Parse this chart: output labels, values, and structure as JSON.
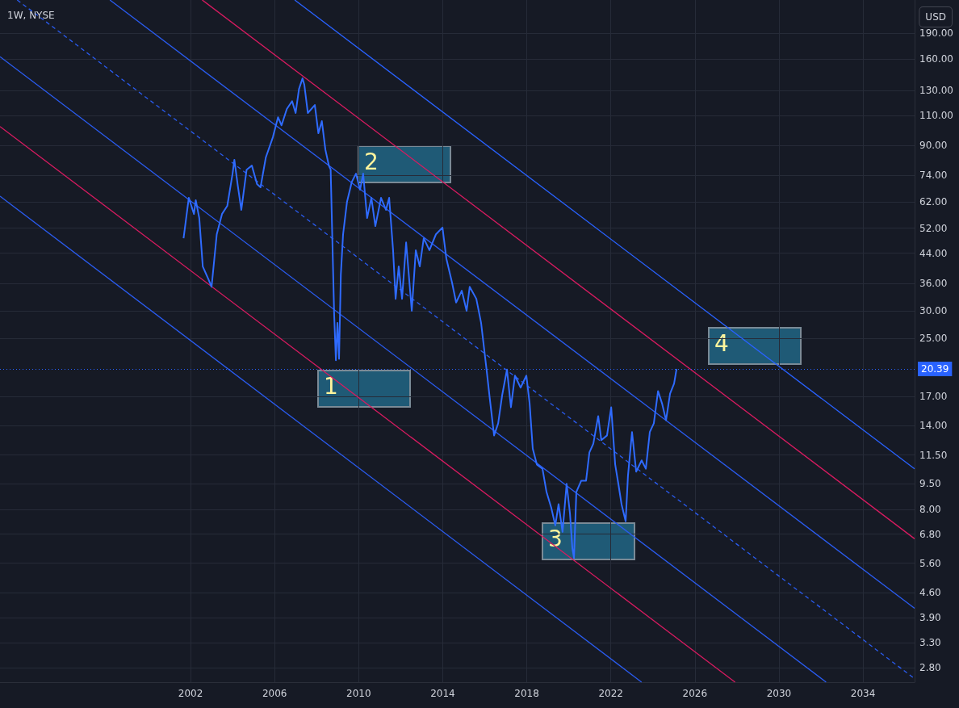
{
  "chart_data": {
    "type": "line",
    "title": "1W, NYSE",
    "log": true,
    "grid": true,
    "marker": "none",
    "tick_labels": "xy",
    "xlim": [
      "1992-12-06",
      "2036-06-17"
    ],
    "xticks": [
      "2002",
      "2006",
      "2010",
      "2014",
      "2018",
      "2022",
      "2026",
      "2030",
      "2034"
    ],
    "ylim": [
      2.54,
      237
    ],
    "yticks": [
      {
        "value": 2.8,
        "label": "2.80"
      },
      {
        "value": 3.3,
        "label": "3.30"
      },
      {
        "value": 3.9,
        "label": "3.90"
      },
      {
        "value": 4.6,
        "label": "4.60"
      },
      {
        "value": 5.6,
        "label": "5.60"
      },
      {
        "value": 6.8,
        "label": "6.80"
      },
      {
        "value": 8,
        "label": "8.00"
      },
      {
        "value": 9.5,
        "label": "9.50"
      },
      {
        "value": 11.5,
        "label": "11.50"
      },
      {
        "value": 14,
        "label": "14.00"
      },
      {
        "value": 17,
        "label": "17.00"
      },
      {
        "value": 25,
        "label": "25.00"
      },
      {
        "value": 30,
        "label": "30.00"
      },
      {
        "value": 36,
        "label": "36.00"
      },
      {
        "value": 44,
        "label": "44.00"
      },
      {
        "value": 52,
        "label": "52.00"
      },
      {
        "value": 62,
        "label": "62.00"
      },
      {
        "value": 74,
        "label": "74.00"
      },
      {
        "value": 90,
        "label": "90.00"
      },
      {
        "value": 110,
        "label": "110.00"
      },
      {
        "value": 130,
        "label": "130.00"
      },
      {
        "value": 160,
        "label": "160.00"
      },
      {
        "value": 190,
        "label": "190.00"
      }
    ],
    "series": [
      {
        "color": "#2f6bff",
        "line_style": "solid",
        "x": [
          "2001-09",
          "2001-12",
          "2002-03",
          "2002-04",
          "2002-06",
          "2002-08",
          "2002-11",
          "2003-01",
          "2003-04",
          "2003-07",
          "2003-10",
          "2004-01",
          "2004-02",
          "2004-04",
          "2004-06",
          "2004-09",
          "2004-12",
          "2005-03",
          "2005-05",
          "2005-08",
          "2005-12",
          "2006-03",
          "2006-05",
          "2006-08",
          "2006-11",
          "2007-01",
          "2007-03",
          "2007-05",
          "2007-06",
          "2007-08",
          "2007-12",
          "2008-02",
          "2008-04",
          "2008-06",
          "2008-08",
          "2008-09",
          "2008-11-01",
          "2008-12-01",
          "2008-12-28",
          "2009-01-25",
          "2009-02-25",
          "2009-04-05",
          "2009-06-12",
          "2009-09-05",
          "2009-11-15",
          "2010-01-25",
          "2010-03-20",
          "2010-05-28",
          "2010-08-10",
          "2010-10-18",
          "2011-01-25",
          "2011-04-20",
          "2011-06-15",
          "2011-08-22",
          "2011-10-05",
          "2011-11-28",
          "2012-01-25",
          "2012-04-05",
          "2012-07-12",
          "2012-09-20",
          "2012-11-28",
          "2013-02-05",
          "2013-05-15",
          "2013-09-05",
          "2013-12-28",
          "2014-03-05",
          "2014-06-12",
          "2014-08-22",
          "2014-11-28",
          "2015-02-20",
          "2015-04-15",
          "2015-08-08",
          "2015-10-30",
          "2016-02-05",
          "2016-04-01",
          "2016-06-12",
          "2016-08-22",
          "2016-10-30",
          "2017-01-22",
          "2017-04-01",
          "2017-06-10",
          "2017-09-15",
          "2017-12-25",
          "2018-02-20",
          "2018-04-15",
          "2018-06-25",
          "2018-10-01",
          "2018-12-10",
          "2019-03-03",
          "2019-05-12",
          "2019-07-08",
          "2019-09-15",
          "2019-11-25",
          "2020-01-22",
          "2020-03-03",
          "2020-04-01",
          "2020-05-12",
          "2020-08-05",
          "2020-10-28",
          "2020-12-25",
          "2021-03-03",
          "2021-05-27",
          "2021-07-20",
          "2021-10-27",
          "2022-01-08",
          "2022-03-18",
          "2022-05-12",
          "2022-07-06",
          "2022-09-16",
          "2022-10-26",
          "2023-01-05",
          "2023-03-18",
          "2023-06-21",
          "2023-09-02",
          "2023-11-10",
          "2024-01-19",
          "2024-04-01",
          "2024-06-10",
          "2024-08-18",
          "2024-10-27",
          "2025-01-05",
          "2025-02-17"
        ],
        "values": [
          48.6,
          63.6,
          57.1,
          62.6,
          55.6,
          40.3,
          37.2,
          35.2,
          49.9,
          57.1,
          60.3,
          74.7,
          81.9,
          68.9,
          58.7,
          76.7,
          78.8,
          69.7,
          68.2,
          83.2,
          95.1,
          108.7,
          103,
          114.8,
          121,
          111.8,
          131.2,
          140.7,
          134.9,
          111.8,
          117.9,
          97.7,
          105.9,
          87.7,
          78.8,
          76.7,
          29.2,
          21.6,
          27.7,
          21.8,
          38.2,
          49.9,
          61.9,
          70.8,
          74.7,
          67.1,
          74.7,
          55.6,
          63.6,
          52.7,
          63.6,
          58.7,
          63.6,
          44.9,
          32.5,
          40.3,
          32.5,
          47.3,
          30.0,
          44.9,
          40.3,
          48.6,
          44.9,
          49.9,
          52.2,
          42.5,
          36.2,
          31.7,
          34.3,
          30.0,
          35.2,
          32.5,
          27.7,
          20.1,
          16.6,
          13.1,
          14.2,
          17.1,
          20.3,
          15.8,
          19.5,
          18.0,
          19.5,
          16.2,
          12.0,
          10.8,
          10.5,
          9.0,
          8.1,
          7.2,
          8.3,
          6.9,
          9.5,
          7.8,
          6.2,
          5.8,
          9.0,
          9.7,
          9.7,
          11.7,
          12.4,
          14.9,
          12.7,
          13.1,
          15.8,
          10.8,
          9.5,
          8.3,
          7.4,
          10.0,
          13.4,
          10.3,
          11.1,
          10.5,
          13.4,
          14.2,
          17.6,
          16.2,
          14.5,
          17.3,
          18.5,
          20.39
        ]
      },
      {
        "color": "#2962ff",
        "line_style": "solid",
        "x": [
          "2006-12-16",
          "2036-06-17"
        ],
        "values": [
          237,
          10.49
        ]
      },
      {
        "color": "#d81b60",
        "line_style": "solid",
        "x": [
          "2002-07-22",
          "2036-06-17"
        ],
        "values": [
          237,
          6.59
        ]
      },
      {
        "color": "#2a5cf0",
        "line_style": "solid",
        "x": [
          "1998-03",
          "2036-06-17"
        ],
        "values": [
          237,
          4.15
        ]
      },
      {
        "color": "#2a5cf0",
        "line_style": "dashed",
        "x": [
          "1993-10",
          "2036-06-17"
        ],
        "values": [
          237,
          2.6
        ]
      },
      {
        "color": "#2a5cf0",
        "line_style": "solid",
        "x": [
          "1992-12-06",
          "2032-04"
        ],
        "values": [
          162.6,
          2.54
        ]
      },
      {
        "color": "#d81b60",
        "line_style": "solid",
        "x": [
          "1992-12-06",
          "2027-12"
        ],
        "values": [
          102.2,
          2.54
        ]
      },
      {
        "color": "#2a5cf0",
        "line_style": "solid",
        "x": [
          "1992-12-06",
          "2023-06-20"
        ],
        "values": [
          64.3,
          2.54
        ]
      }
    ],
    "ref_lines": [
      {
        "axis": "y",
        "value": 20.39,
        "label": "20.39",
        "color": "#2962ff",
        "line_style": "dotted"
      }
    ],
    "annotations": [
      "USD",
      "1",
      "2",
      "3",
      "4"
    ]
  }
}
